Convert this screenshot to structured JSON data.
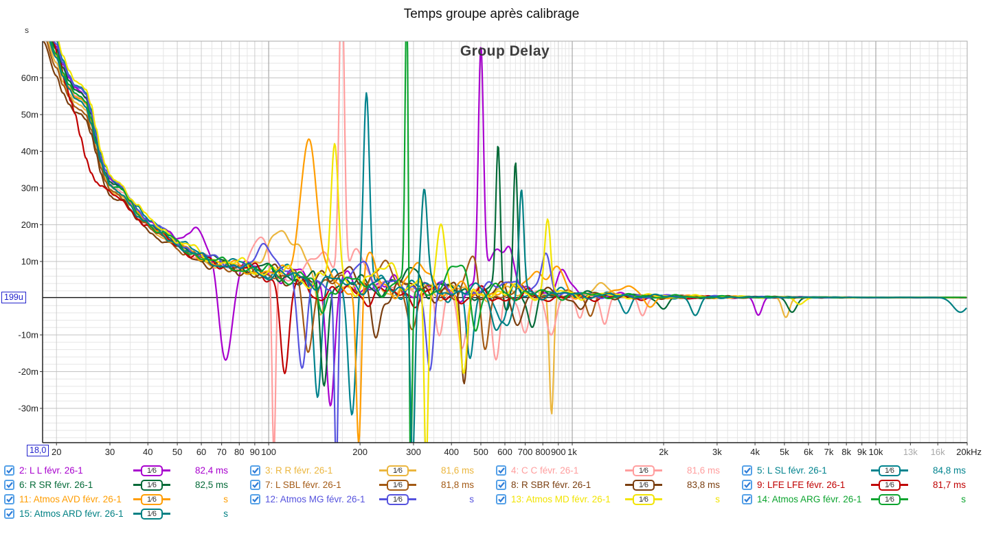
{
  "title": "Temps groupe après calibrage",
  "plot": {
    "label": "Group Delay",
    "y_unit": "s",
    "cursor_y_label": "199u",
    "cursor_x_label": "18,0"
  },
  "chart_data": {
    "type": "line",
    "x_scale": "log",
    "xlabel": "Hz",
    "ylabel": "s",
    "x_range_hz": [
      18,
      20000
    ],
    "y_range_ms": [
      -39.2,
      70.2
    ],
    "zero_cursor_ms": 0.199,
    "grid": true,
    "legend_position": "bottom",
    "y_ticks": [
      {
        "v": 60,
        "l": "60m"
      },
      {
        "v": 50,
        "l": "50m"
      },
      {
        "v": 40,
        "l": "40m"
      },
      {
        "v": 30,
        "l": "30m"
      },
      {
        "v": 20,
        "l": "20m"
      },
      {
        "v": 10,
        "l": "10m"
      },
      {
        "v": -10,
        "l": "-10m"
      },
      {
        "v": -20,
        "l": "-20m"
      },
      {
        "v": -30,
        "l": "-30m"
      }
    ],
    "x_ticks": [
      {
        "f": 20,
        "l": "20"
      },
      {
        "f": 30,
        "l": "30"
      },
      {
        "f": 40,
        "l": "40"
      },
      {
        "f": 50,
        "l": "50"
      },
      {
        "f": 60,
        "l": "60"
      },
      {
        "f": 70,
        "l": "70"
      },
      {
        "f": 80,
        "l": "80"
      },
      {
        "f": 90,
        "l": "90"
      },
      {
        "f": 100,
        "l": "100"
      },
      {
        "f": 200,
        "l": "200"
      },
      {
        "f": 300,
        "l": "300"
      },
      {
        "f": 400,
        "l": "400"
      },
      {
        "f": 500,
        "l": "500"
      },
      {
        "f": 600,
        "l": "600"
      },
      {
        "f": 700,
        "l": "700"
      },
      {
        "f": 800,
        "l": "800"
      },
      {
        "f": 900,
        "l": "900"
      },
      {
        "f": 1000,
        "l": "1k"
      },
      {
        "f": 2000,
        "l": "2k"
      },
      {
        "f": 3000,
        "l": "3k"
      },
      {
        "f": 4000,
        "l": "4k"
      },
      {
        "f": 5000,
        "l": "5k"
      },
      {
        "f": 6000,
        "l": "6k"
      },
      {
        "f": 7000,
        "l": "7k"
      },
      {
        "f": 8000,
        "l": "8k"
      },
      {
        "f": 9000,
        "l": "9k"
      },
      {
        "f": 10000,
        "l": "10k"
      },
      {
        "f": 13000,
        "l": "13k",
        "gray": true
      },
      {
        "f": 16000,
        "l": "16k",
        "gray": true
      },
      {
        "f": 20000,
        "l": "20kHz"
      }
    ],
    "x_major_grid_hz": [
      100,
      1000,
      10000
    ],
    "x_minor_grid_hz": [
      25,
      35,
      45,
      55,
      65,
      75,
      85,
      95,
      125,
      150,
      175,
      225,
      250,
      275,
      325,
      350,
      375,
      425,
      450,
      475,
      525,
      550,
      575,
      625,
      650,
      675,
      725,
      750,
      775,
      825,
      850,
      875,
      925,
      950,
      975,
      1100,
      1200,
      1300,
      1400,
      1500,
      1600,
      1700,
      1800,
      1900,
      2250,
      2500,
      2750,
      3250,
      3500,
      3750,
      4250,
      4500,
      4750,
      5250,
      5500,
      5750,
      6500,
      7500,
      8500,
      9500,
      11000,
      12000,
      14000,
      15000,
      17000,
      18000,
      19000
    ],
    "base_curve_hz_ms": [
      [
        18,
        76
      ],
      [
        20,
        66
      ],
      [
        21,
        61
      ],
      [
        22,
        57.5
      ],
      [
        23,
        55
      ],
      [
        24,
        54.3
      ],
      [
        25,
        52.8
      ],
      [
        26,
        48.5
      ],
      [
        27,
        42.5
      ],
      [
        28,
        37
      ],
      [
        29,
        33.5
      ],
      [
        30,
        31
      ],
      [
        31,
        30
      ],
      [
        32,
        29.4
      ],
      [
        33,
        28.6
      ],
      [
        35,
        25.8
      ],
      [
        37,
        23
      ],
      [
        39,
        21
      ],
      [
        41,
        19.5
      ],
      [
        43,
        18.4
      ],
      [
        45,
        17.6
      ],
      [
        47,
        16.3
      ],
      [
        50,
        14.7
      ],
      [
        53,
        13.3
      ],
      [
        56,
        12.3
      ],
      [
        60,
        11.1
      ],
      [
        65,
        10.1
      ],
      [
        70,
        9.4
      ],
      [
        76,
        8.7
      ],
      [
        82,
        8.2
      ],
      [
        90,
        7.6
      ],
      [
        100,
        7
      ],
      [
        112,
        6.2
      ],
      [
        126,
        5.5
      ],
      [
        142,
        4.9
      ],
      [
        160,
        4.4
      ],
      [
        180,
        4
      ],
      [
        205,
        3.6
      ],
      [
        235,
        3.2
      ],
      [
        270,
        2.9
      ],
      [
        310,
        2.6
      ],
      [
        360,
        2.3
      ],
      [
        420,
        2
      ],
      [
        490,
        1.8
      ],
      [
        570,
        1.6
      ],
      [
        670,
        1.4
      ],
      [
        780,
        1.2
      ],
      [
        900,
        1.05
      ],
      [
        1050,
        0.9
      ],
      [
        1250,
        0.75
      ],
      [
        1500,
        0.6
      ],
      [
        1800,
        0.5
      ],
      [
        2200,
        0.42
      ],
      [
        2700,
        0.36
      ],
      [
        3300,
        0.3
      ],
      [
        4000,
        0.27
      ],
      [
        5000,
        0.24
      ],
      [
        6500,
        0.22
      ],
      [
        8000,
        0.21
      ],
      [
        10000,
        0.2
      ],
      [
        13000,
        0.2
      ],
      [
        16000,
        0.2
      ],
      [
        20000,
        0.2
      ]
    ],
    "lfe_base_hz_ms": [
      [
        18,
        80
      ],
      [
        19.5,
        70
      ],
      [
        20.5,
        64
      ],
      [
        21.5,
        58
      ],
      [
        22.3,
        53.5
      ],
      [
        23,
        50
      ],
      [
        24,
        44
      ],
      [
        25,
        38.5
      ],
      [
        26,
        34.5
      ],
      [
        27,
        32
      ],
      [
        28,
        30.5
      ],
      [
        29.5,
        29
      ],
      [
        31,
        28
      ],
      [
        33,
        26.3
      ],
      [
        35,
        24.2
      ],
      [
        37,
        22.2
      ],
      [
        39,
        20.5
      ],
      [
        41,
        19
      ],
      [
        43,
        18
      ],
      [
        45,
        17.2
      ],
      [
        47,
        16
      ],
      [
        50,
        14.4
      ],
      [
        53,
        13
      ],
      [
        56,
        12
      ],
      [
        60,
        10.8
      ],
      [
        65,
        9.8
      ],
      [
        70,
        9.1
      ],
      [
        76,
        8.4
      ],
      [
        82,
        7.9
      ],
      [
        90,
        7.2
      ],
      [
        100,
        6.4
      ],
      [
        110,
        5.4
      ],
      [
        120,
        4.3
      ],
      [
        132,
        2.5
      ],
      [
        145,
        1.6
      ],
      [
        160,
        1.6
      ],
      [
        180,
        1.4
      ],
      [
        205,
        1.2
      ],
      [
        240,
        1
      ],
      [
        280,
        0.85
      ],
      [
        330,
        0.7
      ],
      [
        400,
        0.6
      ],
      [
        500,
        0.5
      ],
      [
        650,
        0.42
      ],
      [
        800,
        0.36
      ],
      [
        1000,
        0.3
      ],
      [
        1300,
        0.26
      ],
      [
        2000,
        0.22
      ],
      [
        3000,
        0.2
      ],
      [
        5000,
        0.2
      ],
      [
        8000,
        0.2
      ],
      [
        12000,
        0.2
      ],
      [
        20000,
        0.2
      ]
    ],
    "wiggle": {
      "amp_stops_hz_ms": [
        [
          20,
          0.25
        ],
        [
          40,
          0.9
        ],
        [
          70,
          1.5
        ],
        [
          110,
          2.4
        ],
        [
          250,
          2.8
        ],
        [
          600,
          2.2
        ],
        [
          900,
          1.3
        ],
        [
          1400,
          0.7
        ],
        [
          2500,
          0.4
        ],
        [
          4000,
          0.22
        ],
        [
          6000,
          0.12
        ],
        [
          10000,
          0.05
        ],
        [
          20000,
          0.03
        ]
      ],
      "k": [
        18,
        33,
        55
      ],
      "mix": [
        1,
        0.6,
        0.4
      ],
      "norm": 1.6
    },
    "series": [
      {
        "num": 2,
        "label": "2: L L févr. 26-1",
        "color": "#A800CE",
        "value": "82,4 ms",
        "smoothing": "1⁄6",
        "checked": true,
        "scale": 1.04,
        "seed": 1,
        "features": [
          [
            57,
            6,
            0.12
          ],
          [
            72,
            -26,
            0.07
          ],
          [
            160,
            -33,
            0.045
          ],
          [
            500,
            64,
            0.028
          ],
          [
            560,
            11,
            0.09
          ],
          [
            620,
            12,
            0.05
          ],
          [
            925,
            7,
            0.06
          ],
          [
            4100,
            -5,
            0.04
          ]
        ]
      },
      {
        "num": 3,
        "label": "3: R R févr. 26-1",
        "color": "#EBB63E",
        "value": "81,6 ms",
        "smoothing": "1⁄6",
        "checked": true,
        "scale": 0.97,
        "seed": 2,
        "features": [
          [
            115,
            11,
            0.22
          ],
          [
            148,
            -13,
            0.05
          ],
          [
            855,
            -34,
            0.024
          ],
          [
            1250,
            2.5,
            0.1
          ],
          [
            5050,
            -5.5,
            0.04
          ]
        ]
      },
      {
        "num": 4,
        "label": "4: C C févr. 26-1",
        "color": "#FF9E9E",
        "value": "81,6 ms",
        "smoothing": "1⁄6",
        "checked": true,
        "scale": 1.0,
        "seed": 3,
        "features": [
          [
            95,
            8,
            0.1
          ],
          [
            104,
            -52,
            0.02
          ],
          [
            150,
            9,
            0.1
          ],
          [
            174,
            84,
            0.028
          ],
          [
            200,
            8,
            0.1
          ],
          [
            365,
            -13,
            0.045
          ],
          [
            432,
            -15,
            0.045
          ],
          [
            560,
            -18,
            0.045
          ],
          [
            700,
            -11,
            0.05
          ],
          [
            852,
            -11,
            0.05
          ],
          [
            1060,
            -7.5,
            0.04
          ],
          [
            1280,
            -7.5,
            0.04
          ],
          [
            1700,
            -5,
            0.04
          ]
        ]
      },
      {
        "num": 5,
        "label": "5: L SL févr. 26-1",
        "color": "#00838E",
        "value": "84,8 ms",
        "smoothing": "1⁄6",
        "checked": true,
        "scale": 1.06,
        "seed": 4,
        "features": [
          [
            145,
            -32,
            0.04
          ],
          [
            188,
            -34,
            0.04
          ],
          [
            210,
            51,
            0.033
          ],
          [
            460,
            -20,
            0.04
          ],
          [
            590,
            -8,
            0.05
          ],
          [
            1500,
            -4,
            0.05
          ]
        ]
      },
      {
        "num": 6,
        "label": "6: R SR févr. 26-1",
        "color": "#046A38",
        "value": "82,5 ms",
        "smoothing": "1⁄6",
        "checked": true,
        "scale": 1.03,
        "seed": 5,
        "features": [
          [
            152,
            -27,
            0.04
          ],
          [
            300,
            5,
            0.08
          ],
          [
            570,
            39,
            0.024
          ],
          [
            650,
            36.5,
            0.024
          ],
          [
            610,
            -4,
            0.04
          ],
          [
            740,
            -9,
            0.05
          ],
          [
            2000,
            -3.5,
            0.05
          ],
          [
            5300,
            -4,
            0.05
          ]
        ]
      },
      {
        "num": 7,
        "label": "7: L SBL févr. 26-1",
        "color": "#A35A15",
        "value": "81,8 ms",
        "smoothing": "1⁄6",
        "checked": true,
        "scale": 0.95,
        "seed": 6,
        "features": [
          [
            135,
            -18,
            0.05
          ],
          [
            240,
            6,
            0.08
          ],
          [
            300,
            -10,
            0.05
          ],
          [
            470,
            8,
            0.07
          ],
          [
            515,
            -16,
            0.045
          ],
          [
            1150,
            -5,
            0.04
          ]
        ]
      },
      {
        "num": 8,
        "label": "8: R SBR févr. 26-1",
        "color": "#7A3E0F",
        "value": "83,8 ms",
        "smoothing": "1⁄6",
        "checked": true,
        "scale": 0.92,
        "seed": 7,
        "features": [
          [
            175,
            6,
            0.08
          ],
          [
            225,
            -14,
            0.05
          ],
          [
            440,
            -24,
            0.034
          ],
          [
            660,
            -8,
            0.05
          ],
          [
            1060,
            -4,
            0.05
          ]
        ]
      },
      {
        "num": 9,
        "label": "9: LFE LFE févr. 26-1",
        "color": "#C00000",
        "value": "81,7 ms",
        "smoothing": "1⁄6",
        "checked": true,
        "scale": 1.0,
        "seed": 8,
        "base": "lfe",
        "features": [
          [
            113,
            -26,
            0.045
          ]
        ]
      },
      {
        "num": 11,
        "label": "11: Atmos AVD févr. 26-1",
        "color": "#FF9D00",
        "value": "s",
        "smoothing": "1⁄6",
        "checked": true,
        "scale": 1.0,
        "seed": 9,
        "features": [
          [
            135,
            38,
            0.09
          ],
          [
            198,
            -46,
            0.028
          ],
          [
            215,
            8,
            0.06
          ],
          [
            320,
            6,
            0.1
          ],
          [
            750,
            6,
            0.12
          ],
          [
            900,
            6,
            0.07
          ],
          [
            1500,
            3,
            0.1
          ],
          [
            1800,
            -3,
            0.06
          ]
        ]
      },
      {
        "num": 12,
        "label": "12: Atmos MG févr. 26-1",
        "color": "#5552DE",
        "value": "s",
        "smoothing": "1⁄6",
        "checked": true,
        "scale": 1.05,
        "seed": 10,
        "features": [
          [
            100,
            6,
            0.12
          ],
          [
            129,
            -25,
            0.05
          ],
          [
            167,
            -52,
            0.02
          ],
          [
            205,
            6,
            0.08
          ],
          [
            340,
            -22,
            0.04
          ],
          [
            620,
            4,
            0.1
          ],
          [
            820,
            11,
            0.05
          ]
        ]
      },
      {
        "num": 13,
        "label": "13: Atmos MD févr. 26-1",
        "color": "#F2E400",
        "value": "s",
        "smoothing": "1⁄6",
        "checked": true,
        "scale": 1.08,
        "seed": 11,
        "features": [
          [
            165,
            36,
            0.04
          ],
          [
            250,
            6,
            0.1
          ],
          [
            330,
            -50,
            0.022
          ],
          [
            370,
            18,
            0.05
          ],
          [
            440,
            -24,
            0.04
          ],
          [
            830,
            20,
            0.033
          ],
          [
            5600,
            -2,
            0.05
          ]
        ]
      },
      {
        "num": 14,
        "label": "14: Atmos ARG févr. 26-1",
        "color": "#0CA42F",
        "value": "s",
        "smoothing": "1⁄6",
        "checked": true,
        "scale": 1.01,
        "seed": 12,
        "features": [
          [
            150,
            -9,
            0.05
          ],
          [
            285,
            80,
            0.018
          ],
          [
            293,
            -55,
            0.016
          ],
          [
            430,
            8,
            0.09
          ],
          [
            480,
            -12,
            0.045
          ]
        ]
      },
      {
        "num": 15,
        "label": "15: Atmos ARD févr. 26-1",
        "color": "#008083",
        "value": "s",
        "smoothing": "1⁄6",
        "checked": true,
        "scale": 0.99,
        "seed": 13,
        "features": [
          [
            298,
            -46,
            0.024
          ],
          [
            325,
            26,
            0.033
          ],
          [
            560,
            -8,
            0.05
          ],
          [
            610,
            -9,
            0.05
          ],
          [
            680,
            27,
            0.026
          ],
          [
            2550,
            -5,
            0.05
          ],
          [
            19000,
            -4,
            0.08
          ]
        ]
      }
    ]
  }
}
